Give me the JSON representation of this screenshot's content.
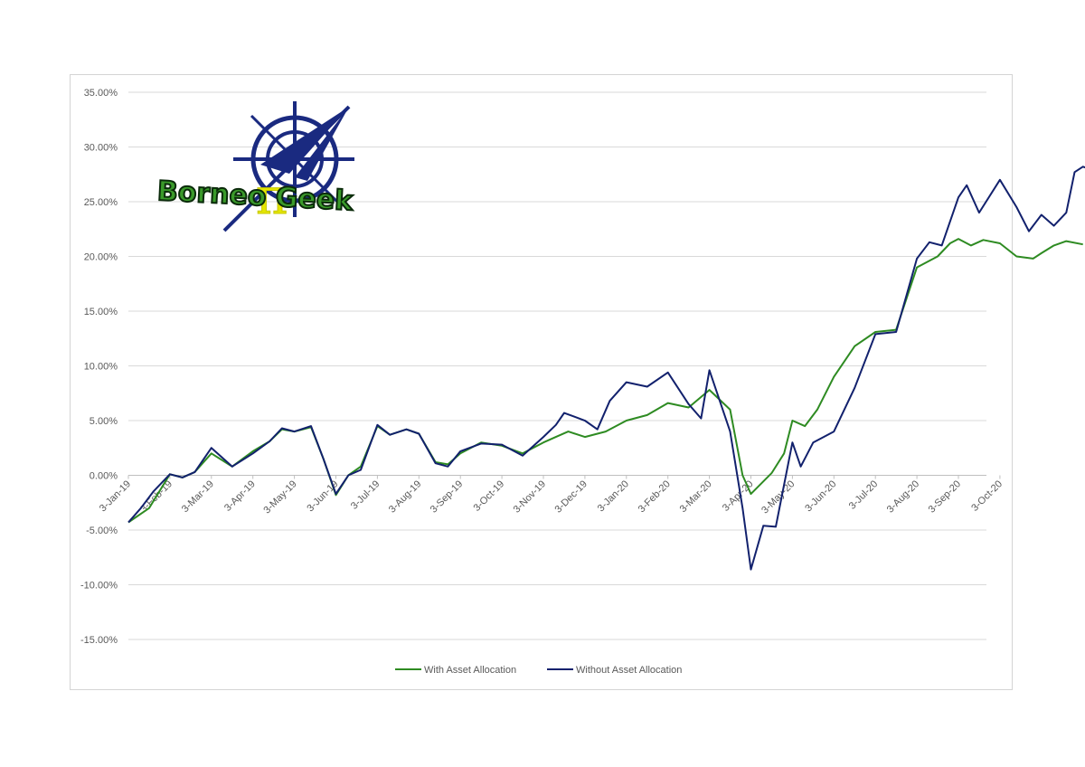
{
  "chart_data": {
    "type": "line",
    "title": "",
    "xlabel": "",
    "ylabel": "",
    "ylim": [
      -0.15,
      0.35
    ],
    "yticks": [
      "35.00%",
      "30.00%",
      "25.00%",
      "20.00%",
      "15.00%",
      "10.00%",
      "5.00%",
      "0.00%",
      "-5.00%",
      "-10.00%",
      "-15.00%"
    ],
    "xticks": [
      "3-Jan-19",
      "3-Feb-19",
      "3-Mar-19",
      "3-Apr-19",
      "3-May-19",
      "3-Jun-19",
      "3-Jul-19",
      "3-Aug-19",
      "3-Sep-19",
      "3-Oct-19",
      "3-Nov-19",
      "3-Dec-19",
      "3-Jan-20",
      "3-Feb-20",
      "3-Mar-20",
      "3-Apr-20",
      "3-May-20",
      "3-Jun-20",
      "3-Jul-20",
      "3-Aug-20",
      "3-Sep-20",
      "3-Oct-20"
    ],
    "grid": true,
    "legend_position": "bottom",
    "series": [
      {
        "name": "With Asset Allocation",
        "color": "#2e8b22",
        "points": [
          [
            0.0,
            -0.043
          ],
          [
            0.5,
            -0.03
          ],
          [
            1.0,
            0.001
          ],
          [
            1.3,
            -0.002
          ],
          [
            1.6,
            0.003
          ],
          [
            2.0,
            0.02
          ],
          [
            2.5,
            0.008
          ],
          [
            3.0,
            0.022
          ],
          [
            3.4,
            0.031
          ],
          [
            3.7,
            0.042
          ],
          [
            4.0,
            0.04
          ],
          [
            4.4,
            0.044
          ],
          [
            4.7,
            0.015
          ],
          [
            5.0,
            -0.018
          ],
          [
            5.3,
            0.0
          ],
          [
            5.6,
            0.008
          ],
          [
            6.0,
            0.045
          ],
          [
            6.3,
            0.037
          ],
          [
            6.7,
            0.042
          ],
          [
            7.0,
            0.038
          ],
          [
            7.4,
            0.012
          ],
          [
            7.7,
            0.01
          ],
          [
            8.0,
            0.02
          ],
          [
            8.5,
            0.03
          ],
          [
            9.0,
            0.027
          ],
          [
            9.5,
            0.02
          ],
          [
            10.0,
            0.03
          ],
          [
            10.3,
            0.035
          ],
          [
            10.6,
            0.04
          ],
          [
            11.0,
            0.035
          ],
          [
            11.5,
            0.04
          ],
          [
            12.0,
            0.05
          ],
          [
            12.5,
            0.055
          ],
          [
            13.0,
            0.066
          ],
          [
            13.5,
            0.062
          ],
          [
            14.0,
            0.078
          ],
          [
            14.5,
            0.06
          ],
          [
            14.8,
            0.0
          ],
          [
            15.0,
            -0.017
          ],
          [
            15.5,
            0.002
          ],
          [
            15.8,
            0.02
          ],
          [
            16.0,
            0.05
          ],
          [
            16.3,
            0.045
          ],
          [
            16.6,
            0.06
          ],
          [
            17.0,
            0.09
          ],
          [
            17.5,
            0.118
          ],
          [
            18.0,
            0.131
          ],
          [
            18.5,
            0.133
          ],
          [
            19.0,
            0.19
          ],
          [
            19.5,
            0.2
          ],
          [
            19.8,
            0.212
          ],
          [
            20.0,
            0.216
          ],
          [
            20.3,
            0.21
          ],
          [
            20.6,
            0.215
          ],
          [
            21.0,
            0.212
          ],
          [
            21.4,
            0.2
          ],
          [
            21.8,
            0.198
          ],
          [
            22.0,
            0.203
          ],
          [
            22.3,
            0.21
          ],
          [
            22.6,
            0.214
          ],
          [
            23.0,
            0.211
          ]
        ]
      },
      {
        "name": "Without Asset Allocation",
        "color": "#12216d",
        "points": [
          [
            0.0,
            -0.043
          ],
          [
            0.3,
            -0.03
          ],
          [
            0.6,
            -0.015
          ],
          [
            1.0,
            0.001
          ],
          [
            1.3,
            -0.002
          ],
          [
            1.6,
            0.003
          ],
          [
            2.0,
            0.025
          ],
          [
            2.5,
            0.008
          ],
          [
            3.0,
            0.02
          ],
          [
            3.4,
            0.031
          ],
          [
            3.7,
            0.043
          ],
          [
            4.0,
            0.04
          ],
          [
            4.4,
            0.045
          ],
          [
            4.7,
            0.015
          ],
          [
            5.0,
            -0.017
          ],
          [
            5.3,
            0.0
          ],
          [
            5.6,
            0.005
          ],
          [
            6.0,
            0.046
          ],
          [
            6.3,
            0.037
          ],
          [
            6.7,
            0.042
          ],
          [
            7.0,
            0.038
          ],
          [
            7.4,
            0.011
          ],
          [
            7.7,
            0.008
          ],
          [
            8.0,
            0.022
          ],
          [
            8.5,
            0.029
          ],
          [
            9.0,
            0.028
          ],
          [
            9.5,
            0.018
          ],
          [
            10.0,
            0.035
          ],
          [
            10.3,
            0.046
          ],
          [
            10.5,
            0.057
          ],
          [
            11.0,
            0.05
          ],
          [
            11.3,
            0.042
          ],
          [
            11.6,
            0.068
          ],
          [
            12.0,
            0.085
          ],
          [
            12.5,
            0.081
          ],
          [
            13.0,
            0.094
          ],
          [
            13.5,
            0.065
          ],
          [
            13.8,
            0.052
          ],
          [
            14.0,
            0.096
          ],
          [
            14.5,
            0.04
          ],
          [
            14.8,
            -0.03
          ],
          [
            15.0,
            -0.086
          ],
          [
            15.3,
            -0.046
          ],
          [
            15.6,
            -0.047
          ],
          [
            16.0,
            0.03
          ],
          [
            16.2,
            0.008
          ],
          [
            16.5,
            0.03
          ],
          [
            17.0,
            0.04
          ],
          [
            17.5,
            0.08
          ],
          [
            18.0,
            0.129
          ],
          [
            18.5,
            0.131
          ],
          [
            19.0,
            0.198
          ],
          [
            19.3,
            0.213
          ],
          [
            19.6,
            0.21
          ],
          [
            20.0,
            0.254
          ],
          [
            20.2,
            0.265
          ],
          [
            20.5,
            0.24
          ],
          [
            21.0,
            0.27
          ],
          [
            21.4,
            0.245
          ],
          [
            21.7,
            0.223
          ],
          [
            22.0,
            0.238
          ],
          [
            22.3,
            0.228
          ],
          [
            22.6,
            0.24
          ],
          [
            22.8,
            0.277
          ],
          [
            23.0,
            0.282
          ],
          [
            23.3,
            0.278
          ]
        ]
      }
    ]
  },
  "logo": {
    "text": "Borneo Geek",
    "icon": "compass-pi-icon",
    "colors": {
      "compass": "#1a2a80",
      "text": "#3a9a2a",
      "pi": "#e4e600"
    }
  }
}
